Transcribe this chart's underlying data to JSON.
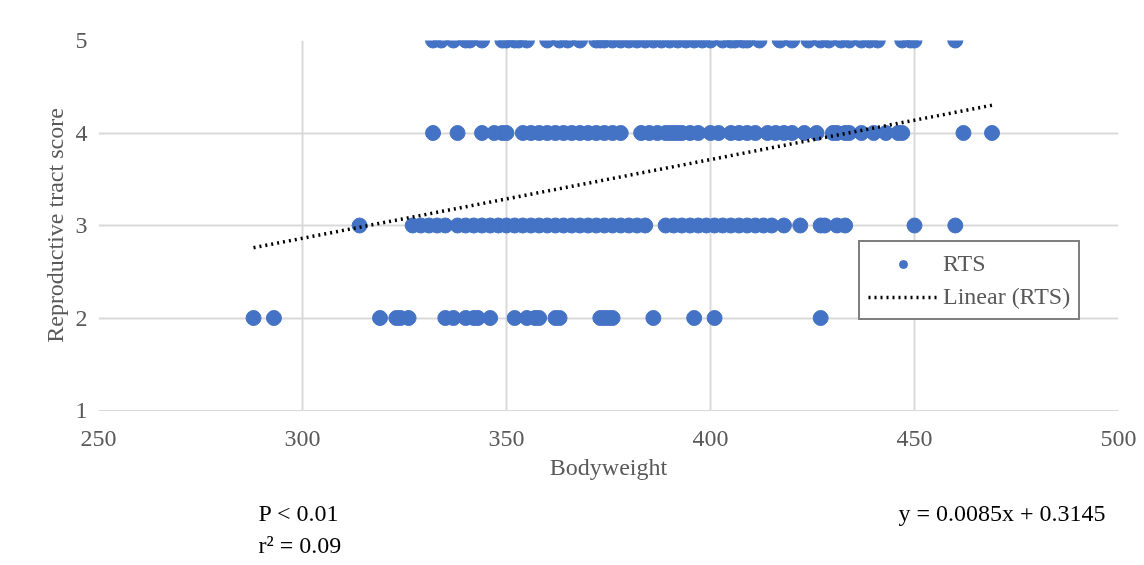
{
  "chart_data": {
    "type": "scatter",
    "xlabel": "Bodyweight",
    "ylabel": "Reproductive tract score",
    "xlim": [
      250,
      500
    ],
    "xticks": [
      250,
      300,
      350,
      400,
      450,
      500
    ],
    "ylim": [
      1,
      5
    ],
    "yticks": [
      1,
      2,
      3,
      4,
      5
    ],
    "grid": true,
    "legend": "right",
    "marker": "circle",
    "annotations": [
      "P < 0.01",
      "r² = 0.09",
      "y = 0.0085x + 0.3145"
    ],
    "series": [
      {
        "name": "RTS",
        "color": "#4472c4",
        "x": [
          332,
          334,
          337,
          340,
          341,
          344,
          349,
          350,
          352,
          353,
          355,
          360,
          363,
          365,
          368,
          372,
          373,
          374,
          376,
          378,
          380,
          382,
          384,
          386,
          388,
          390,
          392,
          394,
          396,
          398,
          400,
          403,
          405,
          406,
          408,
          409,
          412,
          417,
          420,
          424,
          427,
          429,
          432,
          434,
          437,
          439,
          441,
          447,
          449,
          450,
          460,
          332,
          338,
          344,
          347,
          349,
          350,
          354,
          356,
          358,
          360,
          362,
          364,
          366,
          368,
          370,
          372,
          374,
          376,
          378,
          383,
          385,
          387,
          389,
          390,
          391,
          392,
          393,
          395,
          397,
          400,
          402,
          405,
          407,
          409,
          411,
          414,
          416,
          418,
          420,
          423,
          426,
          430,
          431,
          433,
          434,
          437,
          440,
          443,
          446,
          447,
          462,
          469,
          314,
          327,
          329,
          331,
          333,
          335,
          338,
          340,
          342,
          344,
          346,
          348,
          350,
          352,
          354,
          356,
          358,
          360,
          362,
          364,
          366,
          368,
          370,
          372,
          374,
          376,
          378,
          380,
          382,
          384,
          389,
          391,
          393,
          395,
          397,
          399,
          401,
          403,
          405,
          407,
          409,
          411,
          413,
          415,
          418,
          422,
          427,
          428,
          431,
          433,
          450,
          460,
          288,
          293,
          319,
          323,
          324,
          326,
          335,
          337,
          340,
          342,
          343,
          346,
          352,
          355,
          357,
          358,
          362,
          363,
          373,
          374,
          375,
          376,
          386,
          396,
          401,
          427
        ],
        "values": [
          5,
          5,
          5,
          5,
          5,
          5,
          5,
          5,
          5,
          5,
          5,
          5,
          5,
          5,
          5,
          5,
          5,
          5,
          5,
          5,
          5,
          5,
          5,
          5,
          5,
          5,
          5,
          5,
          5,
          5,
          5,
          5,
          5,
          5,
          5,
          5,
          5,
          5,
          5,
          5,
          5,
          5,
          5,
          5,
          5,
          5,
          5,
          5,
          5,
          5,
          5,
          4,
          4,
          4,
          4,
          4,
          4,
          4,
          4,
          4,
          4,
          4,
          4,
          4,
          4,
          4,
          4,
          4,
          4,
          4,
          4,
          4,
          4,
          4,
          4,
          4,
          4,
          4,
          4,
          4,
          4,
          4,
          4,
          4,
          4,
          4,
          4,
          4,
          4,
          4,
          4,
          4,
          4,
          4,
          4,
          4,
          4,
          4,
          4,
          4,
          4,
          4,
          4,
          3,
          3,
          3,
          3,
          3,
          3,
          3,
          3,
          3,
          3,
          3,
          3,
          3,
          3,
          3,
          3,
          3,
          3,
          3,
          3,
          3,
          3,
          3,
          3,
          3,
          3,
          3,
          3,
          3,
          3,
          3,
          3,
          3,
          3,
          3,
          3,
          3,
          3,
          3,
          3,
          3,
          3,
          3,
          3,
          3,
          3,
          3,
          3,
          3,
          3,
          3,
          3,
          2,
          2,
          2,
          2,
          2,
          2,
          2,
          2,
          2,
          2,
          2,
          2,
          2,
          2,
          2,
          2,
          2,
          2,
          2,
          2,
          2,
          2,
          2,
          2,
          2,
          2
        ]
      },
      {
        "name": "Linear (RTS)",
        "color": "#000000",
        "type": "line",
        "line_style": "dotted",
        "marker": "none",
        "x": [
          288,
          469
        ],
        "values": [
          2.76,
          4.3
        ]
      }
    ]
  }
}
